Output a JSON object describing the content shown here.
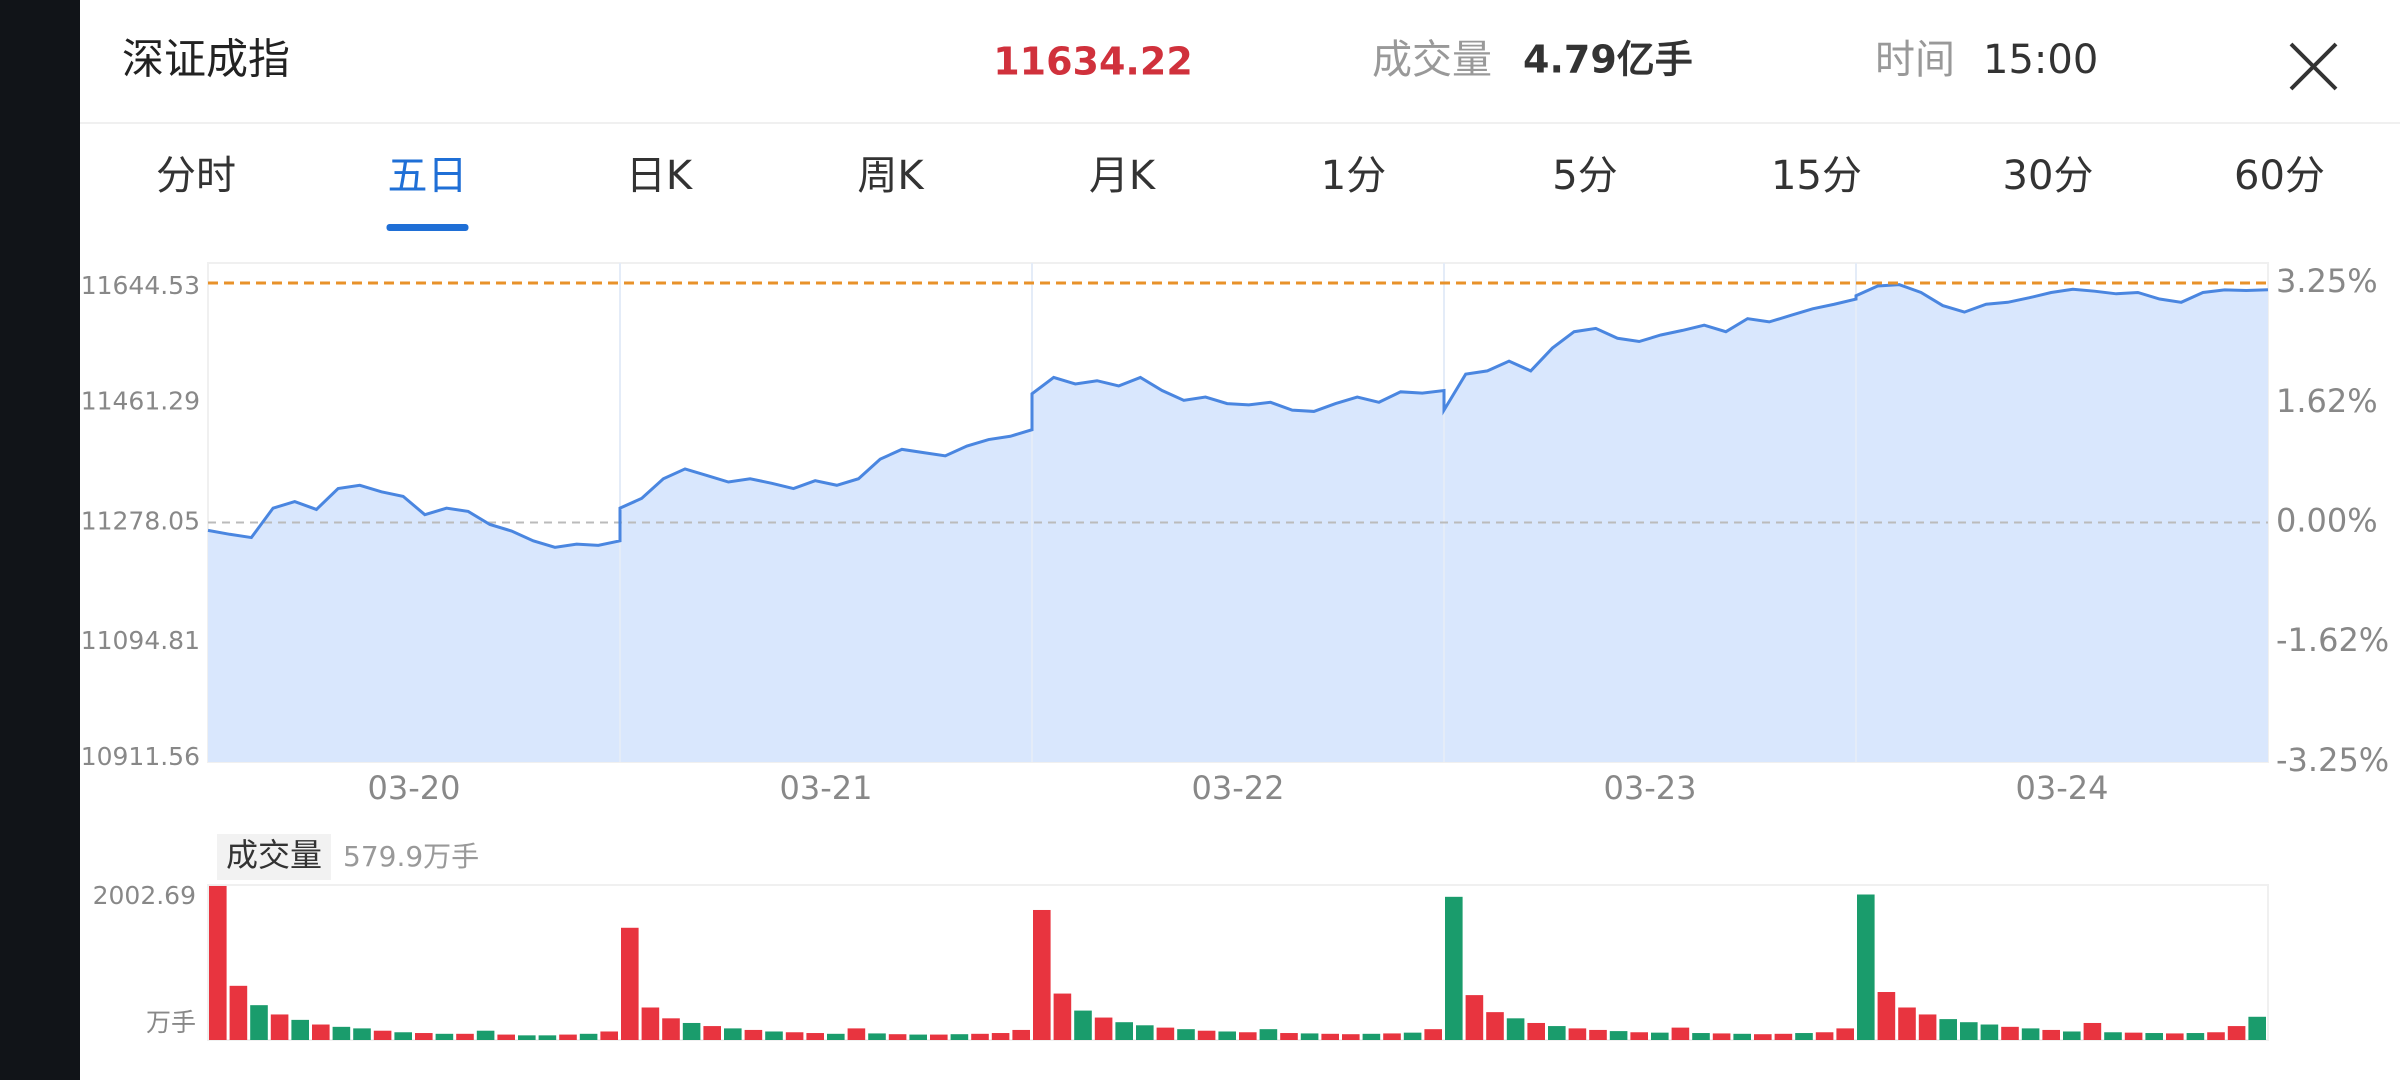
{
  "header": {
    "title": "深证成指",
    "price": "11634.22",
    "volume_label": "成交量",
    "volume": "4.79亿手",
    "time_label": "时间",
    "time": "15:00"
  },
  "tabs": [
    "分时",
    "五日",
    "日K",
    "周K",
    "月K",
    "1分",
    "5分",
    "15分",
    "30分",
    "60分"
  ],
  "active_tab": 1,
  "chart_data": {
    "type": "line",
    "ylim": [
      10911.56,
      11644.53
    ],
    "yticks": [
      11644.53,
      11461.29,
      11278.05,
      11094.81,
      10911.56
    ],
    "y2lim": [
      -3.25,
      3.25
    ],
    "y2ticks": [
      {
        "value": 3.25,
        "label": "3.25%"
      },
      {
        "value": 1.62,
        "label": "1.62%"
      },
      {
        "value": 0,
        "label": "0.00%"
      },
      {
        "value": -1.62,
        "label": "-1.62%"
      },
      {
        "value": -3.25,
        "label": "-3.25%"
      }
    ],
    "line_color": "#4a86e0",
    "fill_color": "#d9e7fd",
    "high_line_color": "#e8922a",
    "days": [
      {
        "label": "03-20",
        "values": [
          11266,
          11260,
          11255,
          11300,
          11310,
          11298,
          11330,
          11335,
          11325,
          11318,
          11290,
          11300,
          11295,
          11275,
          11265,
          11250,
          11240,
          11245,
          11243,
          11250
        ],
        "volumes": [
          1990,
          700,
          450,
          330,
          260,
          200,
          170,
          150,
          120,
          100,
          90,
          80,
          80,
          120,
          70,
          60,
          60,
          70,
          80,
          110
        ],
        "volume_colors": [
          "#e8343f",
          "#e8343f",
          "#1a9c6c",
          "#e8343f",
          "#1a9c6c",
          "#e8343f",
          "#1a9c6c",
          "#1a9c6c",
          "#e8343f",
          "#1a9c6c",
          "#e8343f",
          "#1a9c6c",
          "#e8343f",
          "#1a9c6c",
          "#e8343f",
          "#1a9c6c",
          "#1a9c6c",
          "#e8343f",
          "#1a9c6c",
          "#e8343f"
        ]
      },
      {
        "label": "03-21",
        "values": [
          11300,
          11315,
          11345,
          11360,
          11350,
          11340,
          11345,
          11338,
          11330,
          11342,
          11335,
          11345,
          11375,
          11390,
          11385,
          11380,
          11395,
          11405,
          11410,
          11420
        ],
        "volumes": [
          1450,
          420,
          280,
          220,
          180,
          150,
          130,
          110,
          100,
          90,
          80,
          150,
          85,
          75,
          70,
          70,
          75,
          80,
          90,
          130
        ],
        "volume_colors": [
          "#e8343f",
          "#e8343f",
          "#e8343f",
          "#1a9c6c",
          "#e8343f",
          "#1a9c6c",
          "#e8343f",
          "#1a9c6c",
          "#e8343f",
          "#e8343f",
          "#1a9c6c",
          "#e8343f",
          "#1a9c6c",
          "#e8343f",
          "#1a9c6c",
          "#e8343f",
          "#1a9c6c",
          "#e8343f",
          "#e8343f",
          "#e8343f"
        ]
      },
      {
        "label": "03-22",
        "values": [
          11475,
          11500,
          11490,
          11495,
          11487,
          11500,
          11480,
          11465,
          11470,
          11460,
          11458,
          11462,
          11450,
          11448,
          11460,
          11470,
          11462,
          11478,
          11476,
          11480
        ],
        "volumes": [
          1680,
          600,
          380,
          290,
          230,
          190,
          160,
          140,
          120,
          110,
          100,
          140,
          90,
          85,
          80,
          75,
          80,
          85,
          95,
          140
        ],
        "volume_colors": [
          "#e8343f",
          "#e8343f",
          "#1a9c6c",
          "#e8343f",
          "#1a9c6c",
          "#1a9c6c",
          "#e8343f",
          "#1a9c6c",
          "#e8343f",
          "#1a9c6c",
          "#e8343f",
          "#1a9c6c",
          "#e8343f",
          "#1a9c6c",
          "#e8343f",
          "#e8343f",
          "#1a9c6c",
          "#e8343f",
          "#1a9c6c",
          "#e8343f"
        ]
      },
      {
        "label": "03-23",
        "values": [
          11450,
          11505,
          11510,
          11525,
          11510,
          11545,
          11570,
          11575,
          11560,
          11555,
          11565,
          11572,
          11580,
          11570,
          11590,
          11585,
          11595,
          11605,
          11612,
          11620
        ],
        "volumes": [
          1850,
          580,
          360,
          280,
          220,
          180,
          150,
          130,
          115,
          100,
          95,
          160,
          90,
          85,
          80,
          75,
          80,
          90,
          100,
          150
        ],
        "volume_colors": [
          "#1a9c6c",
          "#e8343f",
          "#e8343f",
          "#1a9c6c",
          "#e8343f",
          "#1a9c6c",
          "#e8343f",
          "#e8343f",
          "#1a9c6c",
          "#e8343f",
          "#1a9c6c",
          "#e8343f",
          "#1a9c6c",
          "#e8343f",
          "#1a9c6c",
          "#e8343f",
          "#e8343f",
          "#1a9c6c",
          "#e8343f",
          "#e8343f"
        ]
      },
      {
        "label": "03-24",
        "values": [
          11625,
          11640,
          11642,
          11630,
          11610,
          11600,
          11612,
          11615,
          11622,
          11630,
          11635,
          11632,
          11628,
          11630,
          11620,
          11615,
          11630,
          11634,
          11633,
          11634.22
        ],
        "volumes": [
          1880,
          620,
          420,
          330,
          270,
          230,
          200,
          170,
          150,
          130,
          110,
          220,
          100,
          95,
          90,
          85,
          90,
          100,
          180,
          300
        ],
        "volume_colors": [
          "#1a9c6c",
          "#e8343f",
          "#e8343f",
          "#e8343f",
          "#1a9c6c",
          "#1a9c6c",
          "#1a9c6c",
          "#e8343f",
          "#1a9c6c",
          "#e8343f",
          "#1a9c6c",
          "#e8343f",
          "#1a9c6c",
          "#e8343f",
          "#1a9c6c",
          "#e8343f",
          "#1a9c6c",
          "#e8343f",
          "#e8343f",
          "#1a9c6c"
        ]
      }
    ],
    "volume_title": "成交量",
    "volume_total": "579.9万手",
    "volume_unit": "万手",
    "volume_ylim": [
      0,
      2002.69
    ],
    "volume_yticks": [
      2002.69
    ]
  }
}
